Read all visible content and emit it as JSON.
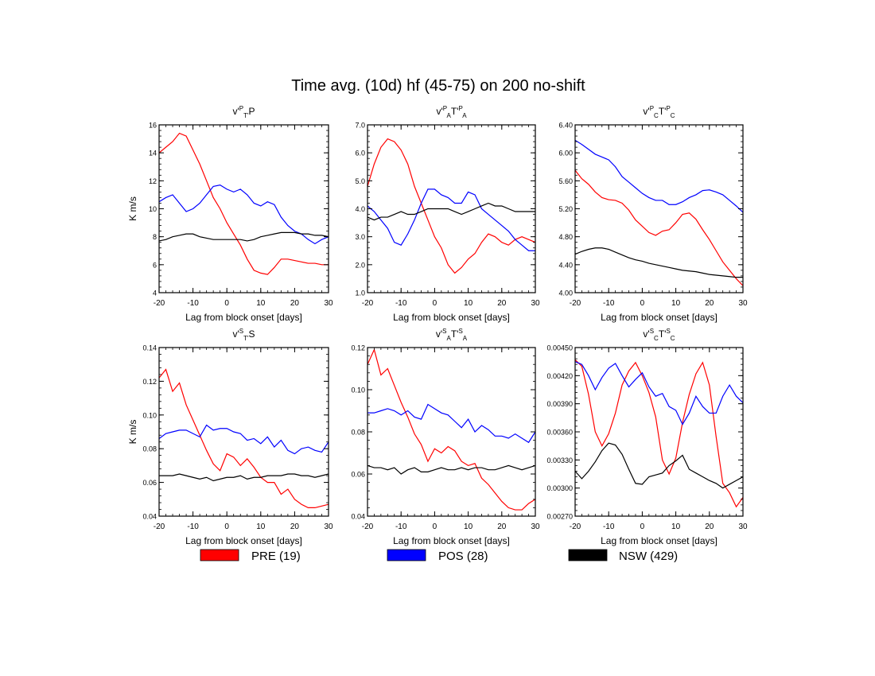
{
  "title": "Time avg. (10d) hf (45-75) on 200 no-shift",
  "legend": [
    {
      "label": "PRE (19)",
      "color": "#ff0000"
    },
    {
      "label": "POS (28)",
      "color": "#0000ff"
    },
    {
      "label": "NSW (429)",
      "color": "#000000"
    }
  ],
  "chart_data": [
    {
      "type": "line",
      "title_parts": [
        "v'",
        "P",
        "T'",
        "P",
        "",
        ""
      ],
      "xlabel": "Lag from block onset [days]",
      "ylabel": "K m/s",
      "xlim": [
        -20,
        30
      ],
      "ylim": [
        4,
        16
      ],
      "xticks": [
        "-20",
        "-10",
        "0",
        "10",
        "20",
        "30"
      ],
      "yticks": [
        "4",
        "6",
        "8",
        "10",
        "12",
        "14",
        "16"
      ],
      "x": [
        -20,
        -18,
        -16,
        -14,
        -12,
        -10,
        -8,
        -6,
        -4,
        -2,
        0,
        2,
        4,
        6,
        8,
        10,
        12,
        14,
        16,
        18,
        20,
        22,
        24,
        26,
        28,
        30
      ],
      "series": [
        {
          "name": "PRE (19)",
          "color": "#ff0000",
          "values": [
            14.0,
            14.4,
            14.8,
            15.4,
            15.2,
            14.2,
            13.2,
            12.0,
            10.8,
            10.0,
            9.0,
            8.2,
            7.4,
            6.4,
            5.6,
            5.4,
            5.3,
            5.8,
            6.4,
            6.4,
            6.3,
            6.2,
            6.1,
            6.1,
            6.0,
            6.0
          ]
        },
        {
          "name": "POS (28)",
          "color": "#0000ff",
          "values": [
            10.5,
            10.8,
            11.0,
            10.4,
            9.8,
            10.0,
            10.4,
            11.0,
            11.6,
            11.7,
            11.4,
            11.2,
            11.4,
            11.0,
            10.4,
            10.2,
            10.5,
            10.3,
            9.4,
            8.8,
            8.4,
            8.2,
            7.8,
            7.5,
            7.8,
            8.0
          ]
        },
        {
          "name": "NSW (429)",
          "color": "#000000",
          "values": [
            7.7,
            7.8,
            8.0,
            8.1,
            8.2,
            8.2,
            8.0,
            7.9,
            7.8,
            7.8,
            7.8,
            7.8,
            7.8,
            7.7,
            7.8,
            8.0,
            8.1,
            8.2,
            8.3,
            8.3,
            8.3,
            8.2,
            8.2,
            8.1,
            8.1,
            8.0
          ]
        }
      ]
    },
    {
      "type": "line",
      "title_parts": [
        "v'",
        "P",
        "A",
        "T'",
        "P",
        "A"
      ],
      "xlabel": "Lag from block onset [days]",
      "ylabel": "",
      "xlim": [
        -20,
        30
      ],
      "ylim": [
        1.0,
        7.0
      ],
      "xticks": [
        "-20",
        "-10",
        "0",
        "10",
        "20",
        "30"
      ],
      "yticks": [
        "1.0",
        "2.0",
        "3.0",
        "4.0",
        "5.0",
        "6.0",
        "7.0"
      ],
      "x": [
        -20,
        -18,
        -16,
        -14,
        -12,
        -10,
        -8,
        -6,
        -4,
        -2,
        0,
        2,
        4,
        6,
        8,
        10,
        12,
        14,
        16,
        18,
        20,
        22,
        24,
        26,
        28,
        30
      ],
      "series": [
        {
          "name": "PRE (19)",
          "color": "#ff0000",
          "values": [
            4.8,
            5.6,
            6.2,
            6.5,
            6.4,
            6.1,
            5.6,
            4.8,
            4.2,
            3.6,
            3.0,
            2.6,
            2.0,
            1.7,
            1.9,
            2.2,
            2.4,
            2.8,
            3.1,
            3.0,
            2.8,
            2.7,
            2.9,
            3.0,
            2.9,
            2.8
          ]
        },
        {
          "name": "POS (28)",
          "color": "#0000ff",
          "values": [
            4.1,
            3.9,
            3.6,
            3.3,
            2.8,
            2.7,
            3.1,
            3.6,
            4.2,
            4.7,
            4.7,
            4.5,
            4.4,
            4.2,
            4.2,
            4.6,
            4.5,
            4.0,
            3.8,
            3.6,
            3.4,
            3.2,
            2.9,
            2.7,
            2.5,
            2.5
          ]
        },
        {
          "name": "NSW (429)",
          "color": "#000000",
          "values": [
            3.7,
            3.6,
            3.7,
            3.7,
            3.8,
            3.9,
            3.8,
            3.8,
            3.9,
            4.0,
            4.0,
            4.0,
            4.0,
            3.9,
            3.8,
            3.9,
            4.0,
            4.1,
            4.2,
            4.1,
            4.1,
            4.0,
            3.9,
            3.9,
            3.9,
            3.9
          ]
        }
      ]
    },
    {
      "type": "line",
      "title_parts": [
        "v'",
        "P",
        "C",
        "T'",
        "P",
        "C"
      ],
      "xlabel": "Lag from block onset [days]",
      "ylabel": "",
      "xlim": [
        -20,
        30
      ],
      "ylim": [
        4.0,
        6.4
      ],
      "xticks": [
        "-20",
        "-10",
        "0",
        "10",
        "20",
        "30"
      ],
      "yticks": [
        "4.00",
        "4.40",
        "4.80",
        "5.20",
        "5.60",
        "6.00",
        "6.40"
      ],
      "x": [
        -20,
        -18,
        -16,
        -14,
        -12,
        -10,
        -8,
        -6,
        -4,
        -2,
        0,
        2,
        4,
        6,
        8,
        10,
        12,
        14,
        16,
        18,
        20,
        22,
        24,
        26,
        28,
        30
      ],
      "series": [
        {
          "name": "PRE (19)",
          "color": "#ff0000",
          "values": [
            5.75,
            5.63,
            5.55,
            5.44,
            5.36,
            5.33,
            5.32,
            5.28,
            5.18,
            5.04,
            4.95,
            4.86,
            4.82,
            4.88,
            4.9,
            5.0,
            5.12,
            5.14,
            5.05,
            4.9,
            4.76,
            4.6,
            4.44,
            4.32,
            4.2,
            4.1
          ]
        },
        {
          "name": "POS (28)",
          "color": "#0000ff",
          "values": [
            6.18,
            6.12,
            6.05,
            5.98,
            5.94,
            5.9,
            5.8,
            5.66,
            5.58,
            5.5,
            5.42,
            5.36,
            5.32,
            5.32,
            5.26,
            5.26,
            5.3,
            5.36,
            5.4,
            5.46,
            5.47,
            5.44,
            5.4,
            5.32,
            5.24,
            5.15
          ]
        },
        {
          "name": "NSW (429)",
          "color": "#000000",
          "values": [
            4.55,
            4.59,
            4.62,
            4.64,
            4.64,
            4.62,
            4.58,
            4.54,
            4.5,
            4.47,
            4.45,
            4.42,
            4.4,
            4.38,
            4.36,
            4.34,
            4.32,
            4.31,
            4.3,
            4.28,
            4.26,
            4.25,
            4.24,
            4.23,
            4.22,
            4.22
          ]
        }
      ]
    },
    {
      "type": "line",
      "title_parts": [
        "v'",
        "S",
        "T'",
        "S",
        "",
        ""
      ],
      "xlabel": "Lag from block onset [days]",
      "ylabel": "K m/s",
      "xlim": [
        -20,
        30
      ],
      "ylim": [
        0.04,
        0.14
      ],
      "xticks": [
        "-20",
        "-10",
        "0",
        "10",
        "20",
        "30"
      ],
      "yticks": [
        "0.04",
        "0.06",
        "0.08",
        "0.10",
        "0.12",
        "0.14"
      ],
      "x": [
        -20,
        -18,
        -16,
        -14,
        -12,
        -10,
        -8,
        -6,
        -4,
        -2,
        0,
        2,
        4,
        6,
        8,
        10,
        12,
        14,
        16,
        18,
        20,
        22,
        24,
        26,
        28,
        30
      ],
      "series": [
        {
          "name": "PRE (19)",
          "color": "#ff0000",
          "values": [
            0.122,
            0.127,
            0.114,
            0.119,
            0.106,
            0.097,
            0.088,
            0.079,
            0.071,
            0.067,
            0.077,
            0.075,
            0.07,
            0.074,
            0.069,
            0.063,
            0.06,
            0.06,
            0.053,
            0.056,
            0.05,
            0.047,
            0.045,
            0.045,
            0.046,
            0.047
          ]
        },
        {
          "name": "POS (28)",
          "color": "#0000ff",
          "values": [
            0.086,
            0.089,
            0.09,
            0.091,
            0.091,
            0.089,
            0.087,
            0.094,
            0.091,
            0.092,
            0.092,
            0.09,
            0.089,
            0.085,
            0.086,
            0.083,
            0.087,
            0.081,
            0.085,
            0.079,
            0.077,
            0.08,
            0.081,
            0.079,
            0.078,
            0.084
          ]
        },
        {
          "name": "NSW (429)",
          "color": "#000000",
          "values": [
            0.064,
            0.064,
            0.064,
            0.065,
            0.064,
            0.063,
            0.062,
            0.063,
            0.061,
            0.062,
            0.063,
            0.063,
            0.064,
            0.062,
            0.063,
            0.063,
            0.064,
            0.064,
            0.064,
            0.065,
            0.065,
            0.064,
            0.064,
            0.063,
            0.064,
            0.065
          ]
        }
      ]
    },
    {
      "type": "line",
      "title_parts": [
        "v'",
        "S",
        "A",
        "T'",
        "S",
        "A"
      ],
      "xlabel": "Lag from block onset [days]",
      "ylabel": "",
      "xlim": [
        -20,
        30
      ],
      "ylim": [
        0.04,
        0.12
      ],
      "xticks": [
        "-20",
        "-10",
        "0",
        "10",
        "20",
        "30"
      ],
      "yticks": [
        "0.04",
        "0.06",
        "0.08",
        "0.10",
        "0.12"
      ],
      "x": [
        -20,
        -18,
        -16,
        -14,
        -12,
        -10,
        -8,
        -6,
        -4,
        -2,
        0,
        2,
        4,
        6,
        8,
        10,
        12,
        14,
        16,
        18,
        20,
        22,
        24,
        26,
        28,
        30
      ],
      "series": [
        {
          "name": "PRE (19)",
          "color": "#ff0000",
          "values": [
            0.112,
            0.119,
            0.107,
            0.11,
            0.102,
            0.094,
            0.087,
            0.079,
            0.074,
            0.066,
            0.072,
            0.07,
            0.073,
            0.071,
            0.066,
            0.064,
            0.065,
            0.058,
            0.055,
            0.051,
            0.047,
            0.044,
            0.043,
            0.043,
            0.046,
            0.048
          ]
        },
        {
          "name": "POS (28)",
          "color": "#0000ff",
          "values": [
            0.089,
            0.089,
            0.09,
            0.091,
            0.09,
            0.088,
            0.09,
            0.087,
            0.086,
            0.093,
            0.091,
            0.089,
            0.088,
            0.085,
            0.082,
            0.086,
            0.08,
            0.083,
            0.081,
            0.078,
            0.078,
            0.077,
            0.079,
            0.077,
            0.075,
            0.08
          ]
        },
        {
          "name": "NSW (429)",
          "color": "#000000",
          "values": [
            0.064,
            0.063,
            0.063,
            0.062,
            0.063,
            0.06,
            0.062,
            0.063,
            0.061,
            0.061,
            0.062,
            0.063,
            0.062,
            0.062,
            0.063,
            0.062,
            0.063,
            0.063,
            0.062,
            0.062,
            0.063,
            0.064,
            0.063,
            0.062,
            0.063,
            0.064
          ]
        }
      ]
    },
    {
      "type": "line",
      "title_parts": [
        "v'",
        "S",
        "C",
        "T'",
        "S",
        "C"
      ],
      "xlabel": "Lag from block onset [days]",
      "ylabel": "",
      "xlim": [
        -20,
        30
      ],
      "ylim": [
        0.0027,
        0.0045
      ],
      "xticks": [
        "-20",
        "-10",
        "0",
        "10",
        "20",
        "30"
      ],
      "yticks": [
        "0.00270",
        "0.00300",
        "0.00330",
        "0.00360",
        "0.00390",
        "0.00420",
        "0.00450"
      ],
      "x": [
        -20,
        -18,
        -16,
        -14,
        -12,
        -10,
        -8,
        -6,
        -4,
        -2,
        0,
        2,
        4,
        6,
        8,
        10,
        12,
        14,
        16,
        18,
        20,
        22,
        24,
        26,
        28,
        30
      ],
      "series": [
        {
          "name": "PRE (19)",
          "color": "#ff0000",
          "values": [
            0.00437,
            0.0043,
            0.004,
            0.0036,
            0.00345,
            0.00358,
            0.0038,
            0.0041,
            0.00425,
            0.00434,
            0.0042,
            0.00402,
            0.00376,
            0.0033,
            0.00315,
            0.00332,
            0.0037,
            0.004,
            0.00422,
            0.00434,
            0.0041,
            0.00355,
            0.00305,
            0.00295,
            0.0028,
            0.0029
          ]
        },
        {
          "name": "POS (28)",
          "color": "#0000ff",
          "values": [
            0.00435,
            0.00432,
            0.0042,
            0.00405,
            0.00418,
            0.00428,
            0.00433,
            0.0042,
            0.00408,
            0.00416,
            0.00423,
            0.00408,
            0.00398,
            0.00401,
            0.00387,
            0.00383,
            0.00368,
            0.0038,
            0.00398,
            0.00387,
            0.0038,
            0.0038,
            0.00398,
            0.0041,
            0.00398,
            0.00391
          ]
        },
        {
          "name": "NSW (429)",
          "color": "#000000",
          "values": [
            0.00318,
            0.0031,
            0.00318,
            0.00328,
            0.0034,
            0.00348,
            0.00346,
            0.00336,
            0.0032,
            0.00305,
            0.00304,
            0.00312,
            0.00314,
            0.00316,
            0.00324,
            0.00329,
            0.00335,
            0.0032,
            0.00316,
            0.00312,
            0.00308,
            0.00305,
            0.003,
            0.00304,
            0.00308,
            0.00312
          ]
        }
      ]
    }
  ]
}
